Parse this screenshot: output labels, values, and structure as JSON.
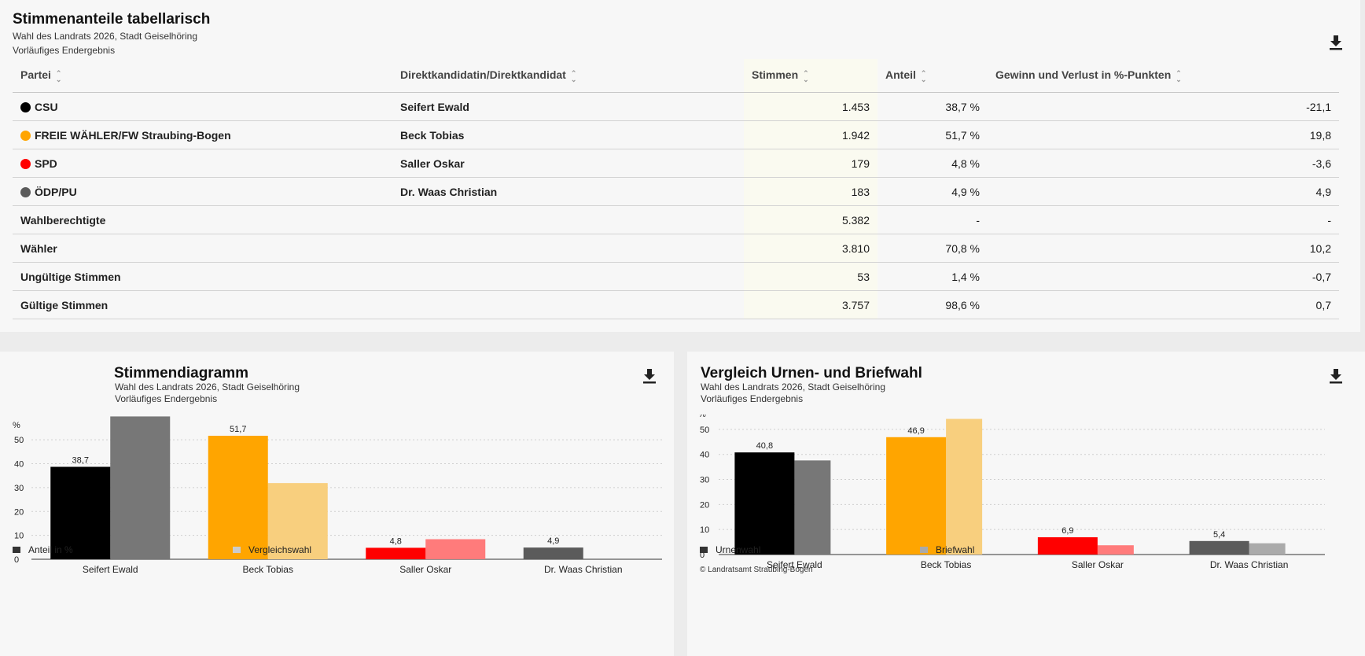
{
  "table_panel": {
    "title": "Stimmenanteile tabellarisch",
    "subtitle": "Wahl des Landrats 2026, Stadt Geiselhöring",
    "status": "Vorläufiges Endergebnis",
    "download_icon": "download-icon",
    "headers": {
      "partei": "Partei",
      "kandidat": "Direktkandidatin/Direktkandidat",
      "stimmen": "Stimmen",
      "anteil": "Anteil",
      "gewinn": "Gewinn und Verlust in %-Punkten"
    },
    "parties": [
      {
        "name": "CSU",
        "color": "#000000",
        "candidate": "Seifert Ewald",
        "votes": "1.453",
        "share": "38,7 %",
        "change": "-21,1"
      },
      {
        "name": "FREIE WÄHLER/FW Straubing-Bogen",
        "color": "#ffa500",
        "candidate": "Beck Tobias",
        "votes": "1.942",
        "share": "51,7 %",
        "change": "19,8"
      },
      {
        "name": "SPD",
        "color": "#ff0000",
        "candidate": "Saller Oskar",
        "votes": "179",
        "share": "4,8 %",
        "change": "-3,6"
      },
      {
        "name": "ÖDP/PU",
        "color": "#5b5b5b",
        "candidate": "Dr. Waas Christian",
        "votes": "183",
        "share": "4,9 %",
        "change": "4,9"
      }
    ],
    "totals": [
      {
        "label": "Wahlberechtigte",
        "votes": "5.382",
        "share": "-",
        "change": "-"
      },
      {
        "label": "Wähler",
        "votes": "3.810",
        "share": "70,8 %",
        "change": "10,2"
      },
      {
        "label": "Ungültige Stimmen",
        "votes": "53",
        "share": "1,4 %",
        "change": "-0,7"
      },
      {
        "label": "Gültige Stimmen",
        "votes": "3.757",
        "share": "98,6 %",
        "change": "0,7"
      }
    ]
  },
  "chart_panel_1": {
    "title": "Stimmendiagramm",
    "subtitle": "Wahl des Landrats 2026, Stadt Geiselhöring",
    "status": "Vorläufiges Endergebnis",
    "legend": [
      "Anteil in %",
      "Vergleichswahl"
    ],
    "legend_colors": [
      "#333333",
      "#cccccc"
    ]
  },
  "chart_panel_2": {
    "title": "Vergleich Urnen- und Briefwahl",
    "subtitle": "Wahl des Landrats 2026, Stadt Geiselhöring",
    "status": "Vorläufiges Endergebnis",
    "legend": [
      "Urnenwahl",
      "Briefwahl"
    ],
    "legend_colors": [
      "#333333",
      "#aaaaaa"
    ],
    "copyright": "© Landratsamt Straubing-Bogen"
  },
  "chart_data": [
    {
      "type": "bar",
      "title": "Stimmendiagramm",
      "ylabel": "%",
      "ylim": [
        0,
        55
      ],
      "yticks": [
        0,
        10,
        20,
        30,
        40,
        50
      ],
      "grid": true,
      "legend_position": "bottom",
      "categories": [
        "Seifert Ewald",
        "Beck Tobias",
        "Saller Oskar",
        "Dr. Waas Christian"
      ],
      "series": [
        {
          "name": "Anteil in %",
          "values": [
            38.7,
            51.7,
            4.8,
            4.9
          ],
          "labels": [
            "38,7",
            "51,7",
            "4,8",
            "4,9"
          ],
          "colors": [
            "#000000",
            "#ffa500",
            "#ff0000",
            "#5b5b5b"
          ]
        },
        {
          "name": "Vergleichswahl",
          "values": [
            59.8,
            31.9,
            8.4,
            0
          ],
          "colors": [
            "#777777",
            "#f8cf7e",
            "#ff7b7b",
            "#aaaaaa"
          ]
        }
      ]
    },
    {
      "type": "bar",
      "title": "Vergleich Urnen- und Briefwahl",
      "ylabel": "%",
      "ylim": [
        0,
        55
      ],
      "yticks": [
        0,
        10,
        20,
        30,
        40,
        50
      ],
      "grid": true,
      "legend_position": "bottom",
      "categories": [
        "Seifert Ewald",
        "Beck Tobias",
        "Saller Oskar",
        "Dr. Waas Christian"
      ],
      "series": [
        {
          "name": "Urnenwahl",
          "values": [
            40.8,
            46.9,
            6.9,
            5.4
          ],
          "labels": [
            "40,8",
            "46,9",
            "6,9",
            "5,4"
          ],
          "colors": [
            "#000000",
            "#ffa500",
            "#ff0000",
            "#5b5b5b"
          ]
        },
        {
          "name": "Briefwahl",
          "values": [
            37.6,
            54.2,
            3.7,
            4.5
          ],
          "colors": [
            "#777777",
            "#f8cf7e",
            "#ff7b7b",
            "#aaaaaa"
          ]
        }
      ]
    }
  ]
}
